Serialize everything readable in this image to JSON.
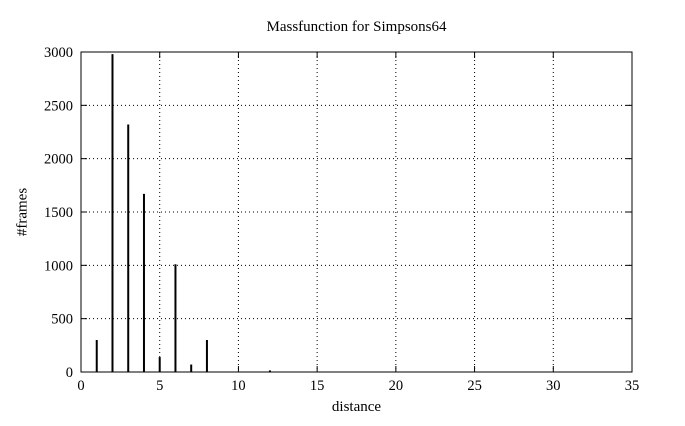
{
  "chart_data": {
    "type": "bar",
    "style": "impulses",
    "title": "Massfunction for Simpsons64",
    "xlabel": "distance",
    "ylabel": "#frames",
    "x": [
      1,
      2,
      3,
      4,
      5,
      6,
      7,
      8,
      12
    ],
    "values": [
      300,
      2980,
      2320,
      1670,
      140,
      1010,
      70,
      300,
      15
    ],
    "xlim": [
      0,
      35
    ],
    "ylim": [
      0,
      3000
    ],
    "xticks": [
      0,
      5,
      10,
      15,
      20,
      25,
      30,
      35
    ],
    "yticks": [
      0,
      500,
      1000,
      1500,
      2000,
      2500,
      3000
    ],
    "grid": "dotted",
    "legend": "none",
    "bar_color": "#000000",
    "grid_color": "#000000",
    "background": "#ffffff"
  }
}
